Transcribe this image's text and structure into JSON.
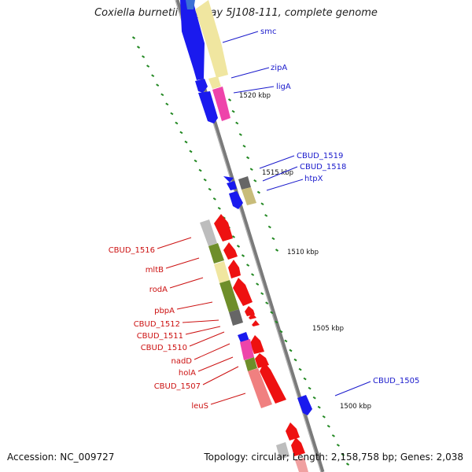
{
  "header": {
    "title": "Coxiella burnetii Dugway 5J108-111, complete genome"
  },
  "footer": {
    "accession": "Accession: NC_009727",
    "summary": "Topology: circular; Length: 2,158,758 bp; Genes: 2,038"
  },
  "ticks": [
    "1520 kbp",
    "1515 kbp",
    "1510 kbp",
    "1505 kbp",
    "1500 kbp"
  ],
  "genes_forward": [
    "smc",
    "zipA",
    "ligA",
    "CBUD_1519",
    "CBUD_1518",
    "htpX",
    "CBUD_1505"
  ],
  "genes_reverse": [
    "CBUD_1516",
    "mltB",
    "rodA",
    "pbpA",
    "CBUD_1512",
    "CBUD_1511",
    "CBUD_1510",
    "nadD",
    "holA",
    "CBUD_1507",
    "leuS"
  ],
  "colors": {
    "forward_label": "#1a1acc",
    "reverse_label": "#cc1111",
    "backbone": "#7a7a7a",
    "tick_mark": "#228822",
    "cds_forward": "#1a1aee",
    "cds_reverse": "#ee1111",
    "cog_yellow": "#f0e6a0",
    "cog_pink": "#ee44aa",
    "cog_khaki": "#c8bc7a",
    "cog_green": "#6e8e2a",
    "cog_gray": "#bdbdbd",
    "cog_darkgray": "#666666",
    "cog_salmon": "#f08080"
  }
}
